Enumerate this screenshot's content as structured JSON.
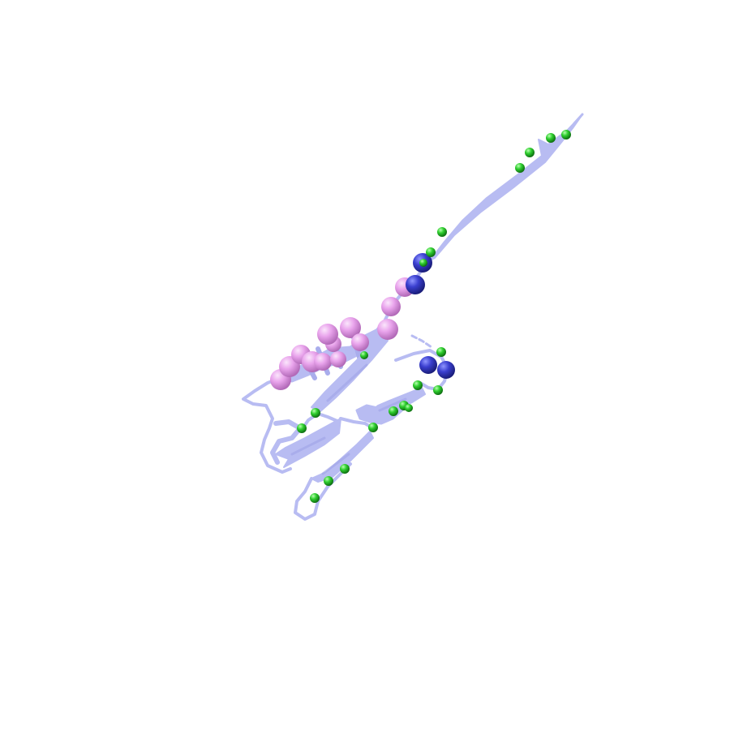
{
  "scene": {
    "background": "#ffffff",
    "colors": {
      "ribbon": "#b8bcf2",
      "ribbon_dark": "#9ea3e6",
      "sphere_pink": "#e9a4ec",
      "sphere_blue": "#3a3fcf",
      "sphere_green": "#2fcf2f"
    },
    "representation": "cartoon",
    "marker_groups": [
      "large-pink-spheres",
      "large-blue-spheres",
      "small-green-spheres"
    ]
  }
}
